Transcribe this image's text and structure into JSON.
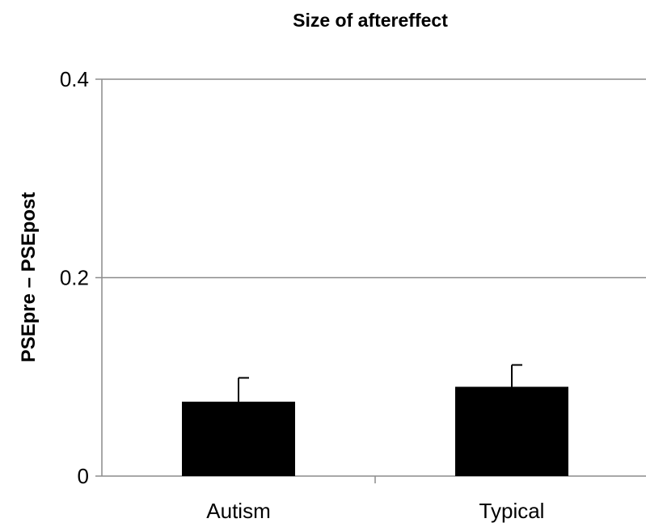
{
  "chart_data": {
    "type": "bar",
    "title": "Size of aftereffect",
    "ylabel": "PSEpre – PSEpost",
    "xlabel": "",
    "categories": [
      "Autism",
      "Typical"
    ],
    "values": [
      0.075,
      0.09
    ],
    "errors": [
      0.024,
      0.022
    ],
    "ylim": [
      0,
      0.4
    ],
    "yticks": [
      {
        "value": 0,
        "label": "0"
      },
      {
        "value": 0.2,
        "label": "0.2"
      },
      {
        "value": 0.4,
        "label": "0.4"
      }
    ],
    "grid": true,
    "legend": "none",
    "colors": {
      "bar": "#000000",
      "grid": "#8c8c8c",
      "axis": "#8c8c8c",
      "text": "#000000"
    }
  }
}
